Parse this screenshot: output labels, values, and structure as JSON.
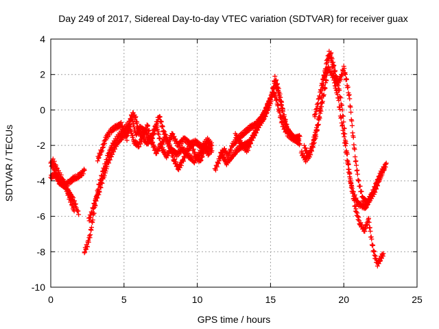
{
  "chart_data": {
    "type": "scatter",
    "title": "Day 249 of 2017, Sidereal Day-to-day VTEC variation (SDTVAR) for receiver guax",
    "xlabel": "GPS time / hours",
    "ylabel": "SDTVAR / TECUs",
    "xlim": [
      0,
      25
    ],
    "ylim": [
      -10,
      4
    ],
    "xticks": [
      0,
      5,
      10,
      15,
      20,
      25
    ],
    "yticks": [
      -10,
      -8,
      -6,
      -4,
      -2,
      0,
      2,
      4
    ],
    "grid": true,
    "marker": "+",
    "series": [
      {
        "name": "SDTVAR",
        "color": "#ff0000",
        "segments": [
          [
            [
              0.0,
              -3.0
            ],
            [
              0.2,
              -3.3
            ],
            [
              0.4,
              -3.8
            ],
            [
              0.6,
              -4.0
            ],
            [
              0.9,
              -4.2
            ],
            [
              1.2,
              -4.6
            ],
            [
              1.5,
              -5.0
            ],
            [
              1.8,
              -5.6
            ],
            [
              1.9,
              -5.9
            ]
          ],
          [
            [
              0.0,
              -3.8
            ],
            [
              0.3,
              -3.6
            ],
            [
              0.6,
              -4.1
            ],
            [
              0.9,
              -4.3
            ],
            [
              1.2,
              -4.1
            ],
            [
              1.5,
              -3.9
            ],
            [
              1.8,
              -3.8
            ],
            [
              2.1,
              -3.6
            ],
            [
              2.3,
              -3.4
            ]
          ],
          [
            [
              0.1,
              -2.8
            ],
            [
              0.3,
              -3.1
            ],
            [
              0.5,
              -3.5
            ],
            [
              0.8,
              -3.9
            ],
            [
              1.0,
              -4.3
            ],
            [
              1.2,
              -4.8
            ],
            [
              1.4,
              -5.2
            ],
            [
              1.6,
              -5.7
            ]
          ],
          [
            [
              2.3,
              -8.0
            ],
            [
              2.5,
              -7.6
            ],
            [
              2.7,
              -7.0
            ],
            [
              2.9,
              -6.0
            ],
            [
              3.1,
              -5.0
            ],
            [
              3.3,
              -4.2
            ],
            [
              3.6,
              -3.4
            ],
            [
              3.9,
              -2.6
            ],
            [
              4.2,
              -2.0
            ],
            [
              4.6,
              -1.5
            ],
            [
              5.0,
              -1.1
            ],
            [
              5.4,
              -0.7
            ],
            [
              5.6,
              -0.2
            ],
            [
              5.8,
              -0.5
            ],
            [
              6.0,
              -1.2
            ],
            [
              6.3,
              -1.6
            ],
            [
              6.6,
              -1.9
            ],
            [
              6.9,
              -1.5
            ],
            [
              7.2,
              -0.8
            ],
            [
              7.4,
              -1.5
            ],
            [
              7.6,
              -2.2
            ],
            [
              7.9,
              -2.6
            ],
            [
              8.2,
              -2.2
            ],
            [
              8.6,
              -2.5
            ],
            [
              9.0,
              -2.2
            ],
            [
              9.4,
              -2.6
            ],
            [
              9.8,
              -2.9
            ],
            [
              10.2,
              -2.4
            ],
            [
              10.6,
              -2.0
            ],
            [
              11.0,
              -2.3
            ]
          ],
          [
            [
              2.6,
              -6.2
            ],
            [
              2.8,
              -5.8
            ],
            [
              3.0,
              -5.2
            ],
            [
              3.3,
              -4.6
            ],
            [
              3.6,
              -3.8
            ],
            [
              3.9,
              -3.0
            ],
            [
              4.2,
              -2.4
            ],
            [
              4.5,
              -1.9
            ],
            [
              4.8,
              -1.6
            ],
            [
              5.1,
              -1.3
            ],
            [
              5.4,
              -1.0
            ],
            [
              5.7,
              -1.8
            ],
            [
              6.0,
              -2.0
            ],
            [
              6.3,
              -1.5
            ],
            [
              6.6,
              -0.9
            ],
            [
              6.9,
              -1.8
            ],
            [
              7.2,
              -2.4
            ],
            [
              7.5,
              -2.0
            ],
            [
              7.8,
              -1.6
            ],
            [
              8.1,
              -2.0
            ],
            [
              8.4,
              -2.8
            ],
            [
              8.7,
              -3.3
            ],
            [
              9.0,
              -2.9
            ],
            [
              9.3,
              -2.3
            ],
            [
              9.6,
              -2.0
            ],
            [
              9.9,
              -2.6
            ],
            [
              10.2,
              -2.9
            ],
            [
              10.5,
              -2.2
            ],
            [
              10.8,
              -2.5
            ]
          ],
          [
            [
              3.2,
              -2.8
            ],
            [
              3.5,
              -2.2
            ],
            [
              3.8,
              -1.5
            ],
            [
              4.1,
              -1.2
            ],
            [
              4.4,
              -1.0
            ],
            [
              4.8,
              -0.8
            ],
            [
              5.2,
              -1.6
            ],
            [
              5.5,
              -0.3
            ],
            [
              5.8,
              -1.4
            ],
            [
              6.1,
              -1.0
            ],
            [
              6.5,
              -1.2
            ],
            [
              6.8,
              -1.9
            ],
            [
              7.1,
              -1.1
            ],
            [
              7.4,
              -0.3
            ],
            [
              7.7,
              -1.2
            ],
            [
              8.0,
              -1.8
            ],
            [
              8.3,
              -1.4
            ],
            [
              8.7,
              -2.0
            ],
            [
              9.1,
              -1.6
            ],
            [
              9.5,
              -1.9
            ],
            [
              9.9,
              -1.8
            ],
            [
              10.3,
              -2.1
            ],
            [
              10.7,
              -1.7
            ],
            [
              11.0,
              -2.0
            ]
          ],
          [
            [
              11.2,
              -3.4
            ],
            [
              11.5,
              -2.8
            ],
            [
              11.8,
              -2.2
            ],
            [
              12.1,
              -2.6
            ],
            [
              12.4,
              -2.0
            ],
            [
              12.8,
              -1.6
            ],
            [
              13.2,
              -1.3
            ],
            [
              13.6,
              -1.0
            ],
            [
              14.0,
              -0.8
            ],
            [
              14.4,
              -0.4
            ],
            [
              14.8,
              0.2
            ],
            [
              15.1,
              0.9
            ],
            [
              15.3,
              1.5
            ],
            [
              15.5,
              1.1
            ],
            [
              15.7,
              0.4
            ],
            [
              15.9,
              -0.4
            ],
            [
              16.1,
              -1.0
            ],
            [
              16.4,
              -1.4
            ],
            [
              16.7,
              -1.7
            ],
            [
              17.0,
              -1.9
            ]
          ],
          [
            [
              11.6,
              -2.4
            ],
            [
              12.0,
              -3.0
            ],
            [
              12.4,
              -2.6
            ],
            [
              12.8,
              -2.2
            ],
            [
              13.2,
              -2.0
            ],
            [
              13.6,
              -1.8
            ],
            [
              14.0,
              -1.2
            ],
            [
              14.4,
              -0.5
            ],
            [
              14.8,
              0.3
            ],
            [
              15.2,
              1.0
            ],
            [
              15.4,
              0.6
            ],
            [
              15.6,
              -0.1
            ],
            [
              15.8,
              -0.8
            ],
            [
              16.1,
              -1.3
            ],
            [
              16.5,
              -1.6
            ],
            [
              16.9,
              -1.7
            ]
          ],
          [
            [
              12.6,
              -1.4
            ],
            [
              13.0,
              -1.9
            ],
            [
              13.4,
              -2.3
            ],
            [
              13.8,
              -1.5
            ],
            [
              14.2,
              -0.9
            ],
            [
              14.6,
              -0.4
            ],
            [
              15.0,
              0.4
            ],
            [
              15.3,
              1.8
            ],
            [
              15.5,
              1.3
            ],
            [
              15.7,
              0.6
            ],
            [
              15.9,
              -0.3
            ],
            [
              16.2,
              -1.2
            ],
            [
              16.6,
              -1.6
            ],
            [
              17.0,
              -1.5
            ]
          ],
          [
            [
              17.1,
              -2.4
            ],
            [
              17.4,
              -2.8
            ],
            [
              17.7,
              -2.5
            ],
            [
              17.9,
              -2.0
            ],
            [
              18.1,
              -1.4
            ],
            [
              18.3,
              -0.6
            ],
            [
              18.5,
              0.3
            ],
            [
              18.7,
              1.2
            ],
            [
              18.9,
              2.2
            ],
            [
              19.0,
              2.9
            ],
            [
              19.1,
              3.3
            ],
            [
              19.2,
              2.8
            ],
            [
              19.3,
              2.1
            ],
            [
              19.4,
              1.4
            ],
            [
              19.6,
              0.8
            ],
            [
              19.8,
              -0.4
            ],
            [
              20.0,
              -1.4
            ],
            [
              20.2,
              -2.6
            ],
            [
              20.4,
              -3.8
            ],
            [
              20.6,
              -4.6
            ],
            [
              20.9,
              -5.2
            ],
            [
              21.2,
              -5.4
            ],
            [
              21.5,
              -5.5
            ],
            [
              21.8,
              -5.0
            ],
            [
              22.1,
              -4.6
            ],
            [
              22.4,
              -4.0
            ],
            [
              22.7,
              -3.4
            ],
            [
              22.9,
              -3.0
            ]
          ],
          [
            [
              17.3,
              -2.1
            ],
            [
              17.6,
              -2.6
            ],
            [
              17.9,
              -1.8
            ],
            [
              18.2,
              -0.9
            ],
            [
              18.4,
              0.2
            ],
            [
              18.6,
              1.5
            ],
            [
              18.8,
              2.6
            ],
            [
              19.0,
              3.2
            ],
            [
              19.3,
              2.5
            ],
            [
              19.5,
              1.8
            ],
            [
              19.7,
              1.0
            ],
            [
              19.9,
              0.0
            ],
            [
              20.1,
              -1.6
            ],
            [
              20.3,
              -3.0
            ],
            [
              20.5,
              -4.2
            ],
            [
              20.8,
              -5.6
            ],
            [
              21.1,
              -6.4
            ],
            [
              21.4,
              -6.8
            ],
            [
              21.7,
              -6.2
            ],
            [
              21.9,
              -7.4
            ],
            [
              22.1,
              -8.2
            ],
            [
              22.3,
              -8.7
            ],
            [
              22.5,
              -8.4
            ],
            [
              22.7,
              -8.1
            ]
          ],
          [
            [
              18.0,
              -0.4
            ],
            [
              18.3,
              0.6
            ],
            [
              18.6,
              1.8
            ],
            [
              18.9,
              2.4
            ],
            [
              19.2,
              2.0
            ],
            [
              19.5,
              1.5
            ],
            [
              19.8,
              1.8
            ],
            [
              20.0,
              2.4
            ],
            [
              20.2,
              1.6
            ],
            [
              20.4,
              0.6
            ],
            [
              20.6,
              -1.2
            ],
            [
              20.8,
              -2.8
            ],
            [
              21.0,
              -4.0
            ],
            [
              21.3,
              -5.0
            ],
            [
              21.6,
              -5.2
            ],
            [
              21.9,
              -4.8
            ],
            [
              22.2,
              -4.2
            ],
            [
              22.5,
              -3.6
            ],
            [
              22.8,
              -3.2
            ]
          ]
        ]
      }
    ]
  }
}
